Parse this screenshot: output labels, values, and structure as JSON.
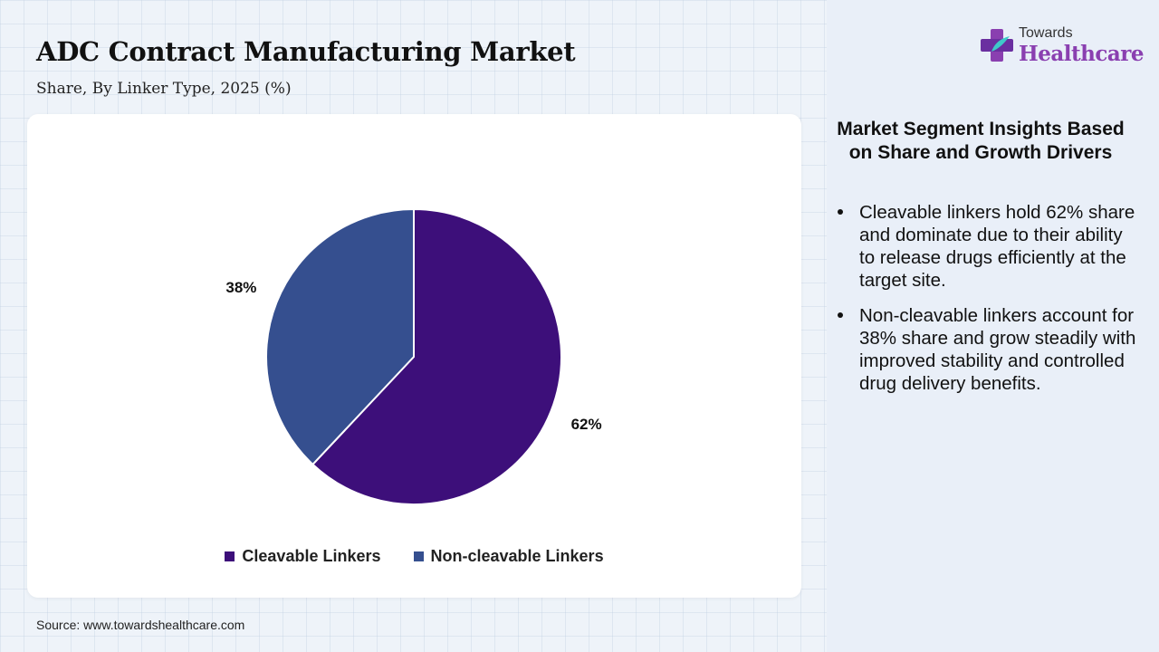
{
  "header": {
    "title": "ADC Contract Manufacturing Market",
    "subtitle": "Share, By Linker Type, 2025 (%)"
  },
  "chart_data": {
    "type": "pie",
    "title": "ADC Contract Manufacturing Market",
    "subtitle": "Share, By Linker Type, 2025 (%)",
    "categories": [
      "Cleavable Linkers",
      "Non-cleavable Linkers"
    ],
    "values": [
      62,
      38
    ],
    "labels": [
      "62%",
      "38%"
    ],
    "colors": [
      "#3d0f7a",
      "#354f8f"
    ],
    "legend_position": "bottom"
  },
  "source": "Source: www.towardshealthcare.com",
  "logo": {
    "small_text": "Towards",
    "big_text": "Healthcare"
  },
  "insights": {
    "heading": "Market Segment Insights Based on Share and Growth Drivers",
    "items": [
      "Cleavable linkers hold 62% share and dominate due to their ability to release drugs efficiently at the target site.",
      "Non-cleavable linkers account for 38% share and grow steadily with improved stability and controlled drug delivery benefits."
    ]
  }
}
